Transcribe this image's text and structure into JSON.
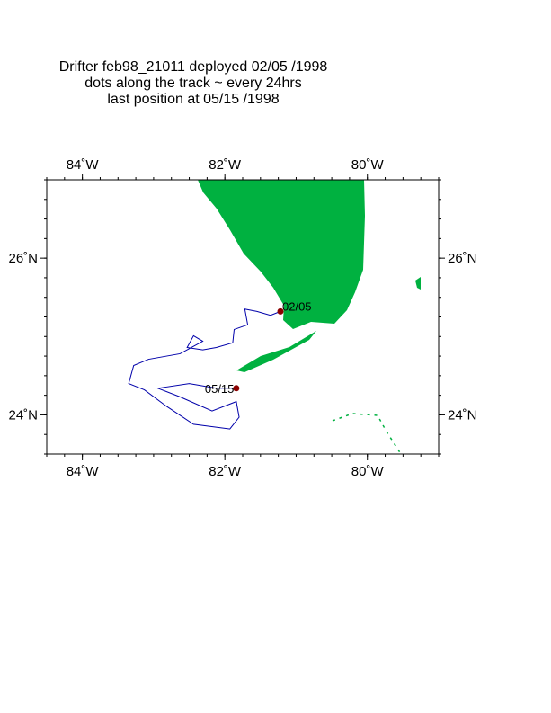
{
  "map": {
    "title_lines": [
      "Drifter feb98_21011  deployed  02/05 /1998",
      "dots along the track ~ every 24hrs",
      "last position at 05/15 /1998"
    ],
    "xlim": [
      -84.5,
      -79.0
    ],
    "ylim": [
      23.5,
      27.0
    ],
    "xticks": [
      {
        "value": -84,
        "label": "84˚W"
      },
      {
        "value": -82,
        "label": "82˚W"
      },
      {
        "value": -80,
        "label": "80˚W"
      }
    ],
    "yticks": [
      {
        "value": 24,
        "label": "24˚N"
      },
      {
        "value": 26,
        "label": "26˚N"
      }
    ],
    "track_color": "#0000aa",
    "track_lon": [
      -81.22,
      -81.36,
      -81.55,
      -81.72,
      -81.68,
      -81.87,
      -81.89,
      -82.12,
      -82.31,
      -82.53,
      -82.44,
      -82.31,
      -82.63,
      -83.07,
      -83.28,
      -83.35,
      -83.13,
      -82.82,
      -82.44,
      -81.93,
      -81.8,
      -81.84,
      -82.18,
      -82.63,
      -82.94,
      -82.5,
      -82.12,
      -81.84
    ],
    "track_lat": [
      25.32,
      25.27,
      25.32,
      25.35,
      25.15,
      25.09,
      24.92,
      24.86,
      24.83,
      24.86,
      25.01,
      24.94,
      24.78,
      24.71,
      24.63,
      24.4,
      24.32,
      24.11,
      23.88,
      23.82,
      23.97,
      24.17,
      24.05,
      24.23,
      24.34,
      24.4,
      24.34,
      24.34
    ],
    "marker_color": "#8b0000",
    "markers": [
      {
        "label": "02/05",
        "lon": -81.22,
        "lat": 25.32
      },
      {
        "label": "05/15",
        "lon": -81.84,
        "lat": 24.34
      }
    ]
  }
}
